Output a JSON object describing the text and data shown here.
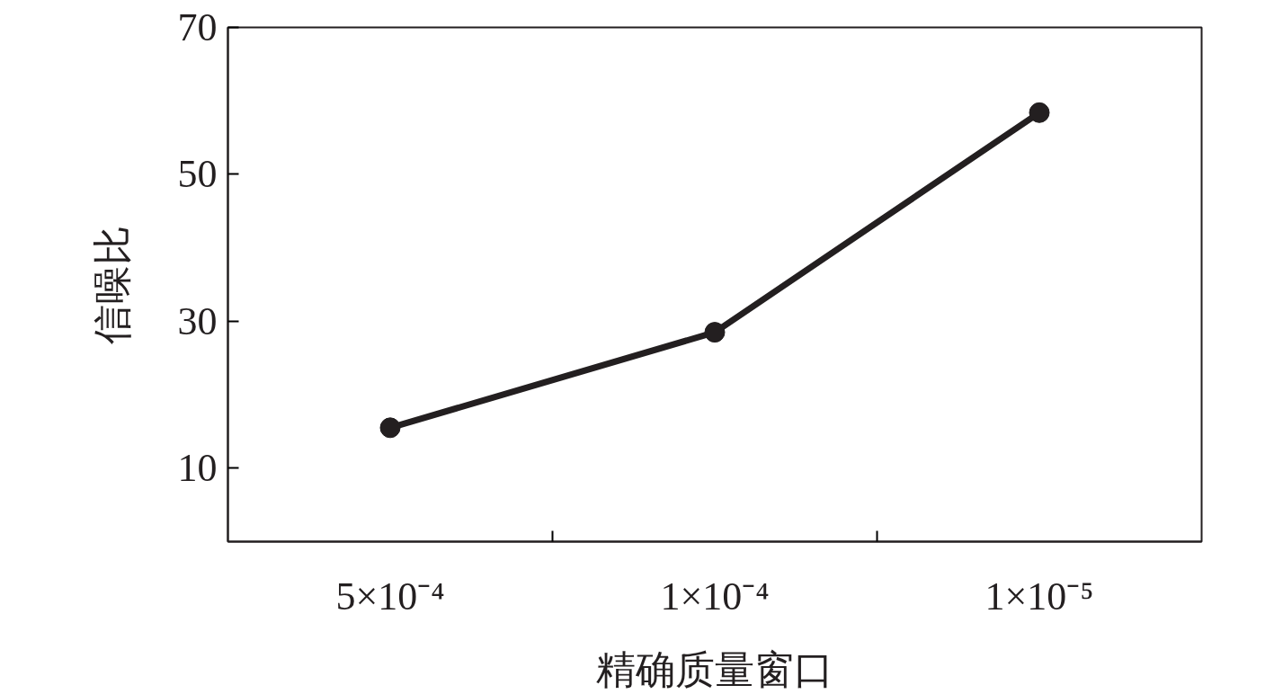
{
  "chart_data": {
    "type": "line",
    "xlabel": "精确质量窗口",
    "ylabel": "信噪比",
    "categories": [
      "5×10⁻⁴",
      "1×10⁻⁴",
      "1×10⁻⁵"
    ],
    "series": [
      {
        "color": "#231f20",
        "values": [
          15.5,
          28.5,
          58.4
        ]
      }
    ],
    "ylim": [
      0,
      70
    ],
    "yticks": [
      10,
      30,
      50,
      70
    ],
    "grid": false,
    "marker": "circle",
    "line_style": "solid"
  }
}
